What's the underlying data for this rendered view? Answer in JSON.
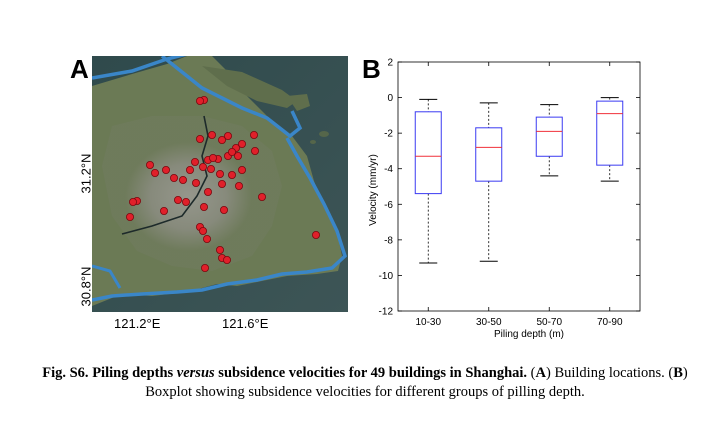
{
  "panel_a": {
    "letter": "A",
    "x_ticks": [
      "121.2°E",
      "121.6°E"
    ],
    "y_ticks": [
      "31.2°N",
      "30.8°N"
    ]
  },
  "panel_b": {
    "letter": "B"
  },
  "chart_data": {
    "type": "boxplot",
    "xlabel": "Piling depth (m)",
    "ylabel": "Velocity (mm/yr)",
    "ylim": [
      -12,
      2
    ],
    "yticks": [
      2,
      0,
      -2,
      -4,
      -6,
      -8,
      -10,
      -12
    ],
    "categories": [
      "10-30",
      "30-50",
      "50-70",
      "70-90"
    ],
    "boxes": [
      {
        "whisker_high": -0.1,
        "q3": -0.8,
        "median": -3.3,
        "q1": -5.4,
        "whisker_low": -9.3
      },
      {
        "whisker_high": -0.3,
        "q3": -1.7,
        "median": -2.8,
        "q1": -4.7,
        "whisker_low": -9.2
      },
      {
        "whisker_high": -0.4,
        "q3": -1.1,
        "median": -1.9,
        "q1": -3.3,
        "whisker_low": -4.4
      },
      {
        "whisker_high": 0.0,
        "q3": -0.2,
        "median": -0.9,
        "q1": -3.8,
        "whisker_low": -4.7
      }
    ],
    "colors": {
      "box": "#3a3af2",
      "median": "#f0303a",
      "whisker": "#000000"
    }
  },
  "caption": {
    "fig_label": "Fig. S6.",
    "title_before": " Piling depths ",
    "title_italic": "versus",
    "title_after": " subsidence velocities for 49 buildings in Shanghai.",
    "a_open": " (",
    "a_letter": "A",
    "a_text": ") Building locations. (",
    "b_letter": "B",
    "b_text": ") Boxplot showing subsidence velocities for different groups of pilling depth."
  }
}
